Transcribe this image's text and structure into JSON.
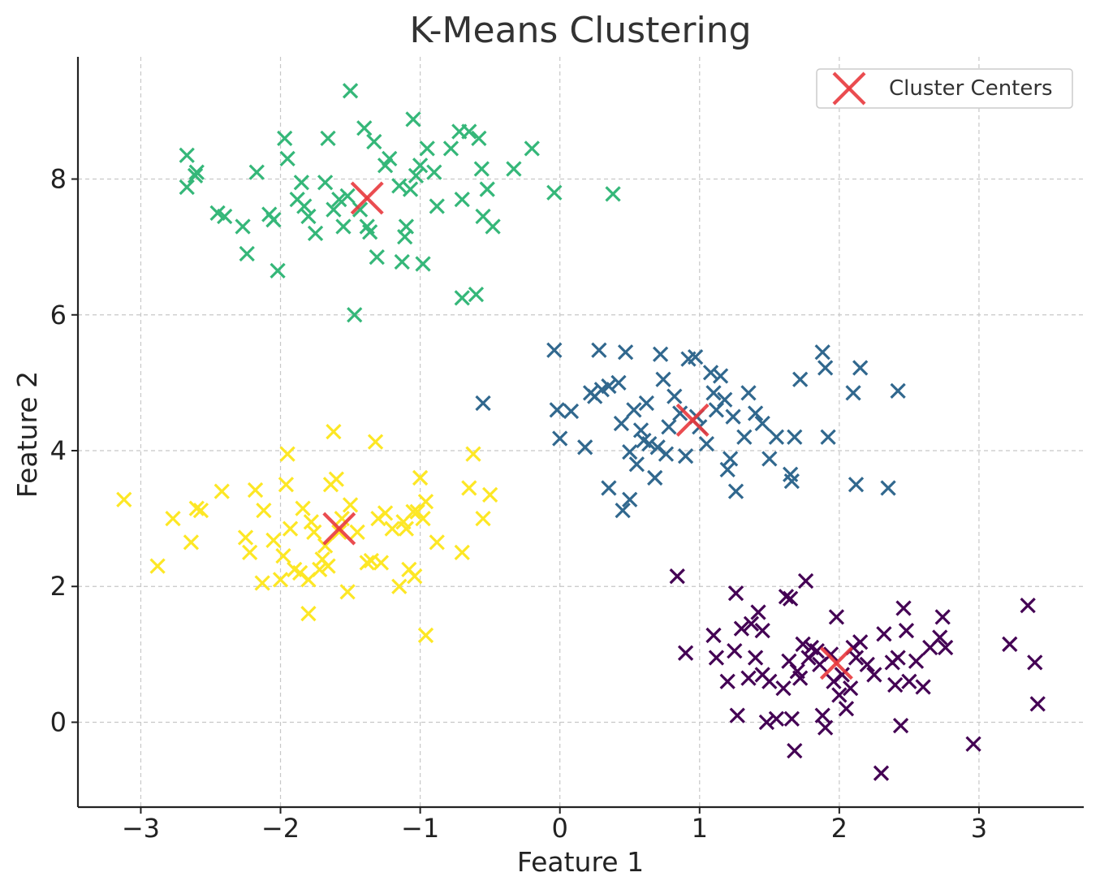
{
  "chart_data": {
    "type": "scatter",
    "title": "K-Means Clustering",
    "xlabel": "Feature 1",
    "ylabel": "Feature 2",
    "xlim": [
      -3.45,
      3.75
    ],
    "ylim": [
      -1.25,
      9.8
    ],
    "xticks": [
      -3,
      -2,
      -1,
      0,
      1,
      2,
      3
    ],
    "xtick_labels": [
      "−3",
      "−2",
      "−1",
      "0",
      "1",
      "2",
      "3"
    ],
    "yticks": [
      0,
      2,
      4,
      6,
      8
    ],
    "ytick_labels": [
      "0",
      "2",
      "4",
      "6",
      "8"
    ],
    "grid": true,
    "marker": "x",
    "legend": {
      "position": "top-right",
      "entries": [
        "Cluster Centers"
      ]
    },
    "colors": {
      "cluster_0": "#440154",
      "cluster_1": "#31688e",
      "cluster_2": "#35b779",
      "cluster_3": "#fde725",
      "centers": "#e8383d"
    },
    "series": [
      {
        "color": "#35b779",
        "points": [
          [
            -2.67,
            8.35
          ],
          [
            -2.67,
            7.88
          ],
          [
            -2.61,
            8.05
          ],
          [
            -2.6,
            8.1
          ],
          [
            -2.45,
            7.5
          ],
          [
            -2.4,
            7.45
          ],
          [
            -2.27,
            7.3
          ],
          [
            -2.24,
            6.9
          ],
          [
            -2.17,
            8.1
          ],
          [
            -2.08,
            7.48
          ],
          [
            -2.05,
            7.4
          ],
          [
            -2.02,
            6.65
          ],
          [
            -1.97,
            8.6
          ],
          [
            -1.95,
            8.3
          ],
          [
            -1.88,
            7.7
          ],
          [
            -1.85,
            7.95
          ],
          [
            -1.83,
            7.6
          ],
          [
            -1.8,
            7.45
          ],
          [
            -1.75,
            7.2
          ],
          [
            -1.68,
            7.95
          ],
          [
            -1.66,
            8.6
          ],
          [
            -1.62,
            7.55
          ],
          [
            -1.58,
            7.7
          ],
          [
            -1.55,
            7.3
          ],
          [
            -1.52,
            7.75
          ],
          [
            -1.5,
            9.3
          ],
          [
            -1.47,
            6.0
          ],
          [
            -1.43,
            7.55
          ],
          [
            -1.4,
            8.75
          ],
          [
            -1.38,
            7.3
          ],
          [
            -1.36,
            7.22
          ],
          [
            -1.33,
            8.55
          ],
          [
            -1.31,
            6.85
          ],
          [
            -1.25,
            8.2
          ],
          [
            -1.22,
            8.3
          ],
          [
            -1.15,
            7.9
          ],
          [
            -1.13,
            6.78
          ],
          [
            -1.11,
            7.15
          ],
          [
            -1.1,
            7.3
          ],
          [
            -1.07,
            7.85
          ],
          [
            -1.05,
            8.88
          ],
          [
            -1.03,
            8.05
          ],
          [
            -1.0,
            8.2
          ],
          [
            -0.98,
            6.75
          ],
          [
            -0.95,
            8.45
          ],
          [
            -0.9,
            8.1
          ],
          [
            -0.88,
            7.6
          ],
          [
            -0.78,
            8.45
          ],
          [
            -0.72,
            8.7
          ],
          [
            -0.7,
            6.25
          ],
          [
            -0.7,
            7.7
          ],
          [
            -0.65,
            8.7
          ],
          [
            -0.6,
            6.3
          ],
          [
            -0.58,
            8.6
          ],
          [
            -0.56,
            8.15
          ],
          [
            -0.55,
            7.45
          ],
          [
            -0.52,
            7.85
          ],
          [
            -0.48,
            7.3
          ],
          [
            -0.33,
            8.15
          ],
          [
            -0.2,
            8.45
          ],
          [
            -0.04,
            7.8
          ],
          [
            0.38,
            7.78
          ]
        ]
      },
      {
        "color": "#31688e",
        "points": [
          [
            -0.55,
            4.7
          ],
          [
            -0.04,
            5.48
          ],
          [
            -0.02,
            4.6
          ],
          [
            0.0,
            4.18
          ],
          [
            0.08,
            4.58
          ],
          [
            0.18,
            4.05
          ],
          [
            0.22,
            4.85
          ],
          [
            0.25,
            4.8
          ],
          [
            0.28,
            5.48
          ],
          [
            0.3,
            4.9
          ],
          [
            0.35,
            4.95
          ],
          [
            0.35,
            3.45
          ],
          [
            0.42,
            5.0
          ],
          [
            0.44,
            4.4
          ],
          [
            0.45,
            3.12
          ],
          [
            0.47,
            5.45
          ],
          [
            0.5,
            3.28
          ],
          [
            0.5,
            3.98
          ],
          [
            0.53,
            4.6
          ],
          [
            0.55,
            3.8
          ],
          [
            0.58,
            4.3
          ],
          [
            0.6,
            4.15
          ],
          [
            0.62,
            4.7
          ],
          [
            0.64,
            4.1
          ],
          [
            0.68,
            3.6
          ],
          [
            0.7,
            4.05
          ],
          [
            0.72,
            5.42
          ],
          [
            0.74,
            5.05
          ],
          [
            0.76,
            3.95
          ],
          [
            0.78,
            4.35
          ],
          [
            0.82,
            4.8
          ],
          [
            0.86,
            4.55
          ],
          [
            0.9,
            3.92
          ],
          [
            0.92,
            5.35
          ],
          [
            0.97,
            5.38
          ],
          [
            0.98,
            4.5
          ],
          [
            1.0,
            4.35
          ],
          [
            1.05,
            4.1
          ],
          [
            1.08,
            5.15
          ],
          [
            1.1,
            4.85
          ],
          [
            1.12,
            4.6
          ],
          [
            1.15,
            5.1
          ],
          [
            1.18,
            4.75
          ],
          [
            1.2,
            3.72
          ],
          [
            1.22,
            3.88
          ],
          [
            1.24,
            4.5
          ],
          [
            1.26,
            3.4
          ],
          [
            1.32,
            4.2
          ],
          [
            1.35,
            4.85
          ],
          [
            1.4,
            4.55
          ],
          [
            1.45,
            4.4
          ],
          [
            1.5,
            3.88
          ],
          [
            1.55,
            4.2
          ],
          [
            1.65,
            3.65
          ],
          [
            1.66,
            3.55
          ],
          [
            1.68,
            4.2
          ],
          [
            1.72,
            5.05
          ],
          [
            1.88,
            5.45
          ],
          [
            1.9,
            5.22
          ],
          [
            1.92,
            4.2
          ],
          [
            2.1,
            4.85
          ],
          [
            2.12,
            3.5
          ],
          [
            2.15,
            5.22
          ],
          [
            2.35,
            3.45
          ],
          [
            2.42,
            4.88
          ]
        ]
      },
      {
        "color": "#fde725",
        "points": [
          [
            -3.12,
            3.28
          ],
          [
            -2.88,
            2.3
          ],
          [
            -2.77,
            3.0
          ],
          [
            -2.64,
            2.65
          ],
          [
            -2.6,
            3.15
          ],
          [
            -2.57,
            3.12
          ],
          [
            -2.42,
            3.4
          ],
          [
            -2.25,
            2.72
          ],
          [
            -2.22,
            2.5
          ],
          [
            -2.18,
            3.42
          ],
          [
            -2.13,
            2.05
          ],
          [
            -2.12,
            3.12
          ],
          [
            -2.05,
            2.68
          ],
          [
            -2.0,
            2.1
          ],
          [
            -1.98,
            2.45
          ],
          [
            -1.96,
            3.5
          ],
          [
            -1.95,
            3.95
          ],
          [
            -1.93,
            2.85
          ],
          [
            -1.9,
            2.25
          ],
          [
            -1.86,
            2.2
          ],
          [
            -1.84,
            3.15
          ],
          [
            -1.8,
            1.6
          ],
          [
            -1.8,
            2.1
          ],
          [
            -1.78,
            2.95
          ],
          [
            -1.76,
            2.8
          ],
          [
            -1.72,
            2.25
          ],
          [
            -1.7,
            2.4
          ],
          [
            -1.68,
            2.6
          ],
          [
            -1.66,
            2.3
          ],
          [
            -1.64,
            3.5
          ],
          [
            -1.62,
            4.28
          ],
          [
            -1.6,
            3.58
          ],
          [
            -1.58,
            2.8
          ],
          [
            -1.56,
            3.0
          ],
          [
            -1.52,
            1.92
          ],
          [
            -1.5,
            3.2
          ],
          [
            -1.45,
            2.8
          ],
          [
            -1.38,
            2.35
          ],
          [
            -1.35,
            2.38
          ],
          [
            -1.32,
            4.13
          ],
          [
            -1.3,
            3.0
          ],
          [
            -1.28,
            2.35
          ],
          [
            -1.25,
            3.08
          ],
          [
            -1.2,
            2.85
          ],
          [
            -1.15,
            2.0
          ],
          [
            -1.12,
            2.95
          ],
          [
            -1.1,
            2.85
          ],
          [
            -1.08,
            2.25
          ],
          [
            -1.05,
            3.1
          ],
          [
            -1.04,
            2.15
          ],
          [
            -1.02,
            3.1
          ],
          [
            -1.0,
            3.6
          ],
          [
            -0.98,
            3.0
          ],
          [
            -0.96,
            3.25
          ],
          [
            -0.96,
            1.28
          ],
          [
            -0.88,
            2.65
          ],
          [
            -0.7,
            2.5
          ],
          [
            -0.65,
            3.45
          ],
          [
            -0.62,
            3.95
          ],
          [
            -0.55,
            3.0
          ],
          [
            -0.5,
            3.35
          ]
        ]
      },
      {
        "color": "#440154",
        "points": [
          [
            0.84,
            2.15
          ],
          [
            0.9,
            1.02
          ],
          [
            1.1,
            1.28
          ],
          [
            1.12,
            0.95
          ],
          [
            1.2,
            0.6
          ],
          [
            1.25,
            1.05
          ],
          [
            1.26,
            1.9
          ],
          [
            1.27,
            0.1
          ],
          [
            1.3,
            1.38
          ],
          [
            1.35,
            0.65
          ],
          [
            1.37,
            1.45
          ],
          [
            1.4,
            0.95
          ],
          [
            1.42,
            1.62
          ],
          [
            1.45,
            1.35
          ],
          [
            1.45,
            0.7
          ],
          [
            1.48,
            0.0
          ],
          [
            1.5,
            0.6
          ],
          [
            1.55,
            0.05
          ],
          [
            1.6,
            0.5
          ],
          [
            1.62,
            1.85
          ],
          [
            1.64,
            0.9
          ],
          [
            1.65,
            1.82
          ],
          [
            1.66,
            0.05
          ],
          [
            1.68,
            -0.42
          ],
          [
            1.7,
            0.75
          ],
          [
            1.72,
            0.65
          ],
          [
            1.74,
            1.15
          ],
          [
            1.76,
            2.08
          ],
          [
            1.78,
            0.95
          ],
          [
            1.8,
            1.1
          ],
          [
            1.84,
            1.05
          ],
          [
            1.86,
            0.85
          ],
          [
            1.88,
            0.1
          ],
          [
            1.9,
            -0.08
          ],
          [
            1.94,
            1.0
          ],
          [
            1.96,
            0.6
          ],
          [
            1.98,
            1.55
          ],
          [
            2.0,
            0.4
          ],
          [
            2.02,
            0.7
          ],
          [
            2.05,
            0.2
          ],
          [
            2.08,
            0.5
          ],
          [
            2.1,
            1.1
          ],
          [
            2.12,
            0.95
          ],
          [
            2.15,
            1.18
          ],
          [
            2.2,
            0.85
          ],
          [
            2.25,
            0.7
          ],
          [
            2.3,
            -0.75
          ],
          [
            2.32,
            1.3
          ],
          [
            2.38,
            0.88
          ],
          [
            2.4,
            0.55
          ],
          [
            2.42,
            0.95
          ],
          [
            2.44,
            -0.05
          ],
          [
            2.46,
            1.68
          ],
          [
            2.48,
            1.35
          ],
          [
            2.5,
            0.6
          ],
          [
            2.55,
            0.9
          ],
          [
            2.6,
            0.52
          ],
          [
            2.65,
            1.1
          ],
          [
            2.72,
            1.25
          ],
          [
            2.74,
            1.55
          ],
          [
            2.76,
            1.1
          ],
          [
            2.96,
            -0.32
          ],
          [
            3.22,
            1.15
          ],
          [
            3.35,
            1.72
          ],
          [
            3.4,
            0.88
          ],
          [
            3.42,
            0.27
          ]
        ]
      }
    ],
    "centers": [
      [
        -1.38,
        7.72
      ],
      [
        0.95,
        4.45
      ],
      [
        -1.58,
        2.85
      ],
      [
        1.98,
        0.87
      ]
    ]
  }
}
